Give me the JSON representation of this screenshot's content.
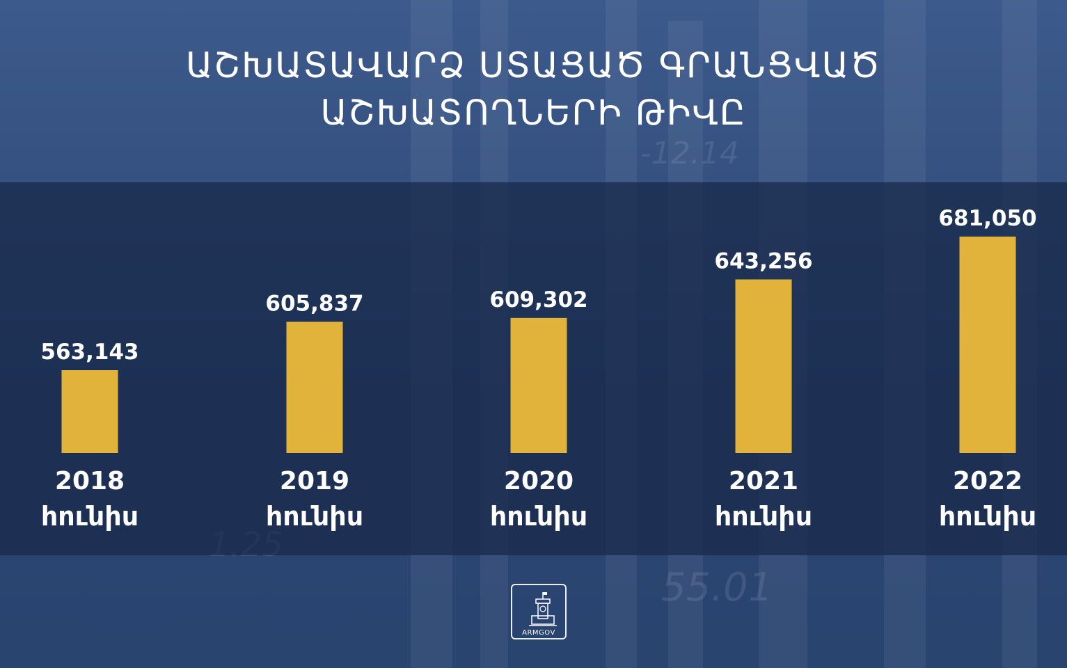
{
  "title_lines": [
    "ԱՇԽԱՏԱՎԱՐՁ ՍՏԱՑԱԾ ԳՐԱՆՑՎԱԾ",
    "ԱՇԽԱՏՈՂՆԵՐԻ ԹԻՎԸ"
  ],
  "logo": {
    "text": "ARMGOV",
    "icon": "government-building-icon"
  },
  "background_numbers": [
    "-12.14",
    "55.01",
    "1.25"
  ],
  "colors": {
    "bar": "#e2b33a",
    "text": "#ffffff",
    "band": "#1c2c50"
  },
  "chart_data": {
    "type": "bar",
    "categories": [
      "2018",
      "2019",
      "2020",
      "2021",
      "2022"
    ],
    "category_sublabel": "հունիս",
    "values": [
      563143,
      605837,
      609302,
      643256,
      681050
    ],
    "value_labels": [
      "563,143",
      "605,837",
      "609,302",
      "643,256",
      "681,050"
    ],
    "title": "ԱՇԽԱՏԱՎԱՐՁ ՍՏԱՑԱԾ ԳՐԱՆՑՎԱԾ ԱՇԽԱՏՈՂՆԵՐԻ ԹԻՎԸ",
    "xlabel": "",
    "ylabel": "",
    "grid": false,
    "legend": "none"
  }
}
